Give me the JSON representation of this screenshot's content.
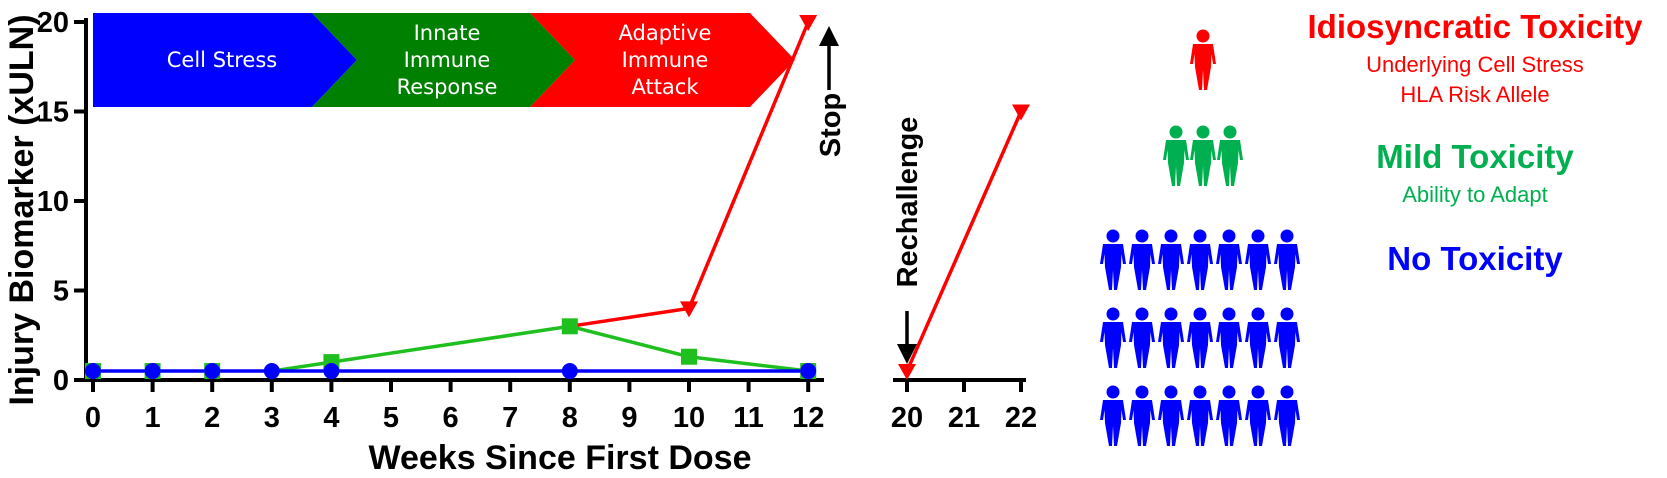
{
  "chart_data": {
    "type": "line",
    "ylabel": "Injury Biomarker (xULN)",
    "xlabel": "Weeks Since First Dose",
    "ylim": [
      0,
      20
    ],
    "yticks": [
      "0",
      "5",
      "10",
      "15",
      "20"
    ],
    "x_ticks_main": [
      "0",
      "1",
      "2",
      "3",
      "4",
      "5",
      "6",
      "7",
      "8",
      "9",
      "10",
      "11",
      "12"
    ],
    "x_ticks_rechallenge": [
      "20",
      "21",
      "22"
    ],
    "grid": false,
    "series": [
      {
        "color": "#ff0000",
        "marker": "triangle-down",
        "points": [
          [
            8,
            3
          ],
          [
            10,
            4
          ],
          [
            12,
            20
          ]
        ],
        "rechallenge_points": [
          [
            20,
            0.5
          ],
          [
            22,
            15
          ]
        ]
      },
      {
        "color": "#1fbf1f",
        "marker": "square",
        "points": [
          [
            3,
            0.5
          ],
          [
            4,
            1
          ],
          [
            8,
            3
          ],
          [
            10,
            1.3
          ],
          [
            12,
            0.5
          ]
        ]
      },
      {
        "color": "#0000ff",
        "marker": "circle",
        "points": [
          [
            0,
            0.5
          ],
          [
            1,
            0.5
          ],
          [
            2,
            0.5
          ],
          [
            3,
            0.5
          ],
          [
            4,
            0.5
          ],
          [
            8,
            0.5
          ],
          [
            12,
            0.5
          ]
        ]
      }
    ],
    "green_squares": [
      [
        0,
        0.5
      ],
      [
        1,
        0.5
      ],
      [
        2,
        0.5
      ],
      [
        4,
        1
      ],
      [
        8,
        3
      ],
      [
        10,
        1.3
      ],
      [
        12,
        0.5
      ]
    ],
    "phases": [
      {
        "label": [
          "Cell Stress"
        ],
        "color": "#0000ff"
      },
      {
        "label": [
          "Innate",
          "Immune",
          "Response"
        ],
        "color": "#008000"
      },
      {
        "label": [
          "Adaptive",
          "Immune",
          "Attack"
        ],
        "color": "#ff0000"
      }
    ],
    "annotations": {
      "stop": "Stop",
      "rechallenge": "Rechallenge"
    }
  },
  "legend": [
    {
      "title": "Idiosyncratic Toxicity",
      "subtitle": [
        "Underlying Cell Stress",
        "HLA Risk Allele"
      ],
      "color": "#ff0000",
      "people": 1
    },
    {
      "title": "Mild Toxicity",
      "subtitle": [
        "Ability to Adapt"
      ],
      "color": "#00b050",
      "people": 3
    },
    {
      "title": "No Toxicity",
      "subtitle": [],
      "color": "#0000ff",
      "people": 21
    }
  ]
}
